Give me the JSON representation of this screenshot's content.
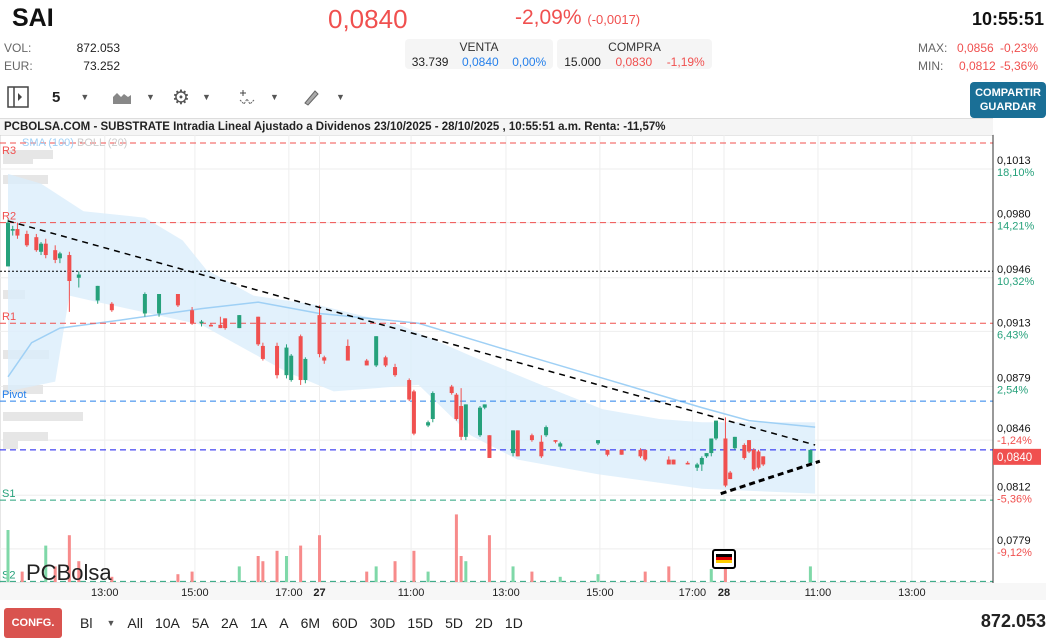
{
  "header": {
    "ticker": "SAI",
    "price": "0,0840",
    "change_pct": "-2,09%",
    "change_abs": "(-0,0017)",
    "time": "10:55:51",
    "vol_label": "VOL:",
    "vol": "872.053",
    "eur_label": "EUR:",
    "eur": "73.252",
    "venta": {
      "label": "VENTA",
      "qty": "33.739",
      "price": "0,0840",
      "pct": "0,00%"
    },
    "compra": {
      "label": "COMPRA",
      "qty": "15.000",
      "price": "0,0830",
      "pct": "-1,19%"
    },
    "max_label": "MAX:",
    "max": "0,0856",
    "max_pct": "-0,23%",
    "min_label": "MIN:",
    "min": "0,0812",
    "min_pct": "-5,36%"
  },
  "toolbar": {
    "interval": "5",
    "share_line1": "COMPARTIR",
    "share_line2": "GUARDAR",
    "icons": [
      "panel-toggle-icon",
      "area-chart-icon",
      "gear-icon",
      "indicators-icon",
      "draw-pencil-icon"
    ]
  },
  "chart_title": "PCBOLSA.COM - SUBSTRATE Intradia Lineal Ajustado a Dividenos 23/10/2025 - 28/10/2025 , 10:55:51 a.m. Renta: -11,57%",
  "legend": {
    "sma": "SMA (100)",
    "boll": "BOLL (20)"
  },
  "colors": {
    "up": "#26a17b",
    "down": "#f0504f",
    "accent": "#1a6f96",
    "band": "#dbeefb",
    "sma": "#9fd0f5"
  },
  "chart_data": {
    "type": "candlestick",
    "ylim": [
      0.0745,
      0.104
    ],
    "y_ticks": [
      {
        "price": "0,1013",
        "pct": "18,10%",
        "v": 0.1013,
        "up": true
      },
      {
        "price": "0,0980",
        "pct": "14,21%",
        "v": 0.098,
        "up": true
      },
      {
        "price": "0,0946",
        "pct": "10,32%",
        "v": 0.0946,
        "up": true
      },
      {
        "price": "0,0913",
        "pct": "6,43%",
        "v": 0.0913,
        "up": true
      },
      {
        "price": "0,0879",
        "pct": "2,54%",
        "v": 0.0879,
        "up": true
      },
      {
        "price": "0,0846",
        "pct": "-1,24%",
        "v": 0.0846,
        "up": false
      },
      {
        "price": "0,0812",
        "pct": "-5,36%",
        "v": 0.0812,
        "up": false
      },
      {
        "price": "0,0779",
        "pct": "-9,12%",
        "v": 0.0779,
        "up": false
      }
    ],
    "current_price_label": "0,0840",
    "current_price": 0.084,
    "x_ticks": [
      {
        "label": "13:00",
        "bar": 20.5
      },
      {
        "label": "15:00",
        "bar": 39.6
      },
      {
        "label": "17:00",
        "bar": 59.5
      },
      {
        "label": "27",
        "bar": 66,
        "bold": true
      },
      {
        "label": "11:00",
        "bar": 85.4
      },
      {
        "label": "13:00",
        "bar": 105.5
      },
      {
        "label": "15:00",
        "bar": 125.4
      },
      {
        "label": "17:00",
        "bar": 145
      },
      {
        "label": "28",
        "bar": 151.7,
        "bold": true
      },
      {
        "label": "11:00",
        "bar": 171.6
      },
      {
        "label": "13:00",
        "bar": 191.5
      }
    ],
    "levels": [
      {
        "name": "R3",
        "v": 0.1029,
        "color": "#f0504f"
      },
      {
        "name": "R2",
        "v": 0.098,
        "color": "#f0504f"
      },
      {
        "name": "",
        "v": 0.095,
        "color": "#000",
        "dotted": true
      },
      {
        "name": "R1",
        "v": 0.0918,
        "color": "#f0504f"
      },
      {
        "name": "Pivot",
        "v": 0.087,
        "color": "#2680eb"
      },
      {
        "name": "",
        "v": 0.084,
        "color": "#1a1aee"
      },
      {
        "name": "S1",
        "v": 0.0809,
        "color": "#26a17b"
      },
      {
        "name": "S2",
        "v": 0.0759,
        "color": "#26a17b"
      }
    ],
    "trendlines": [
      {
        "from": [
          0,
          0.0981
        ],
        "to": [
          171,
          0.0843
        ],
        "style": "resistance"
      },
      {
        "from": [
          151,
          0.0813
        ],
        "to": [
          172,
          0.0833
        ],
        "style": "support"
      }
    ],
    "boll_upper": [
      [
        0,
        0.101
      ],
      [
        7,
        0.1004
      ],
      [
        16,
        0.0987
      ],
      [
        29,
        0.0983
      ],
      [
        37,
        0.0969
      ],
      [
        42,
        0.0951
      ],
      [
        52,
        0.0935
      ],
      [
        66,
        0.0929
      ],
      [
        83,
        0.0917
      ],
      [
        98,
        0.0898
      ],
      [
        113,
        0.088
      ],
      [
        126,
        0.0865
      ],
      [
        138,
        0.0859
      ],
      [
        147,
        0.0857
      ],
      [
        171,
        0.0857
      ]
    ],
    "boll_lower": [
      [
        0,
        0.0876
      ],
      [
        10,
        0.0882
      ],
      [
        13,
        0.0935
      ],
      [
        19,
        0.0931
      ],
      [
        41,
        0.0917
      ],
      [
        59,
        0.0888
      ],
      [
        69,
        0.0876
      ],
      [
        87,
        0.088
      ],
      [
        98,
        0.0849
      ],
      [
        108,
        0.0834
      ],
      [
        125,
        0.0825
      ],
      [
        147,
        0.0816
      ],
      [
        171,
        0.0813
      ]
    ],
    "sma100": [
      [
        0,
        0.0885
      ],
      [
        5,
        0.0906
      ],
      [
        11,
        0.0915
      ],
      [
        24,
        0.092
      ],
      [
        41,
        0.0927
      ],
      [
        53,
        0.0931
      ],
      [
        66,
        0.0924
      ],
      [
        87,
        0.0918
      ],
      [
        104,
        0.0903
      ],
      [
        125,
        0.0885
      ],
      [
        147,
        0.0866
      ],
      [
        157,
        0.0858
      ],
      [
        171,
        0.0854
      ]
    ],
    "candles": [
      [
        0,
        0.0953,
        0.0982,
        0.0953,
        0.098
      ],
      [
        1,
        0.0975,
        0.0978,
        0.0972,
        0.0976
      ],
      [
        2,
        0.0976,
        0.098,
        0.097,
        0.0972
      ],
      [
        4,
        0.0973,
        0.0975,
        0.0965,
        0.0966
      ],
      [
        6,
        0.0971,
        0.0973,
        0.0962,
        0.0963
      ],
      [
        7,
        0.0962,
        0.0968,
        0.096,
        0.0967
      ],
      [
        8,
        0.0967,
        0.097,
        0.0958,
        0.096
      ],
      [
        10,
        0.0963,
        0.0966,
        0.0955,
        0.0957
      ],
      [
        11,
        0.0958,
        0.0962,
        0.0955,
        0.0961
      ],
      [
        13,
        0.096,
        0.0962,
        0.0925,
        0.0944
      ],
      [
        15,
        0.0946,
        0.095,
        0.094,
        0.0948
      ],
      [
        19,
        0.0932,
        0.0941,
        0.093,
        0.0941
      ],
      [
        22,
        0.093,
        0.0931,
        0.0925,
        0.0926
      ],
      [
        29,
        0.0924,
        0.0937,
        0.0922,
        0.0936
      ],
      [
        32,
        0.0924,
        0.0936,
        0.0922,
        0.0936
      ],
      [
        36,
        0.0936,
        0.0936,
        0.0928,
        0.0929
      ],
      [
        39,
        0.0926,
        0.0928,
        0.0917,
        0.0918
      ],
      [
        41,
        0.0918,
        0.092,
        0.0916,
        0.0919
      ],
      [
        43,
        0.0917,
        0.0918,
        0.0916,
        0.0916
      ],
      [
        45,
        0.0917,
        0.0922,
        0.0915,
        0.0915
      ],
      [
        46,
        0.0921,
        0.0921,
        0.0914,
        0.0915
      ],
      [
        49,
        0.0915,
        0.0923,
        0.0915,
        0.0923
      ],
      [
        53,
        0.0922,
        0.0922,
        0.0904,
        0.0905
      ],
      [
        54,
        0.0904,
        0.0906,
        0.0895,
        0.0896
      ],
      [
        57,
        0.0904,
        0.0906,
        0.0884,
        0.0886
      ],
      [
        59,
        0.0886,
        0.0905,
        0.0884,
        0.0903
      ],
      [
        60,
        0.0883,
        0.0899,
        0.0882,
        0.0898
      ],
      [
        62,
        0.091,
        0.0911,
        0.088,
        0.0883
      ],
      [
        63,
        0.0883,
        0.0897,
        0.0881,
        0.0896
      ],
      [
        66,
        0.0923,
        0.0929,
        0.0897,
        0.0899
      ],
      [
        67,
        0.0897,
        0.0898,
        0.0893,
        0.0895
      ],
      [
        72,
        0.0904,
        0.0908,
        0.0895,
        0.0895
      ],
      [
        76,
        0.0895,
        0.0896,
        0.0892,
        0.0892
      ],
      [
        78,
        0.0892,
        0.091,
        0.0891,
        0.091
      ],
      [
        80,
        0.0897,
        0.0898,
        0.0891,
        0.0892
      ],
      [
        82,
        0.0891,
        0.0893,
        0.0885,
        0.0886
      ],
      [
        85,
        0.0883,
        0.0884,
        0.087,
        0.0871
      ],
      [
        86,
        0.0876,
        0.0877,
        0.0849,
        0.085
      ],
      [
        89,
        0.0855,
        0.0858,
        0.0854,
        0.0857
      ],
      [
        90,
        0.0859,
        0.0876,
        0.0857,
        0.0875
      ],
      [
        94,
        0.0879,
        0.088,
        0.0874,
        0.0875
      ],
      [
        95,
        0.0874,
        0.0875,
        0.0858,
        0.0859
      ],
      [
        96,
        0.0867,
        0.0878,
        0.0846,
        0.0848
      ],
      [
        97,
        0.0848,
        0.0868,
        0.0846,
        0.0868
      ],
      [
        100,
        0.0849,
        0.0867,
        0.0848,
        0.0866
      ],
      [
        101,
        0.0866,
        0.0868,
        0.0865,
        0.0868
      ],
      [
        102,
        0.0849,
        0.0849,
        0.0835,
        0.0835
      ],
      [
        107,
        0.0838,
        0.0852,
        0.0836,
        0.0852
      ],
      [
        108,
        0.0852,
        0.0852,
        0.0836,
        0.0836
      ],
      [
        111,
        0.0849,
        0.085,
        0.0845,
        0.0846
      ],
      [
        113,
        0.0845,
        0.0849,
        0.0835,
        0.0836
      ],
      [
        114,
        0.0849,
        0.0855,
        0.0848,
        0.0854
      ],
      [
        116,
        0.0846,
        0.0846,
        0.0844,
        0.0845
      ],
      [
        117,
        0.0842,
        0.0845,
        0.084,
        0.0844
      ],
      [
        125,
        0.0844,
        0.0846,
        0.0843,
        0.0846
      ],
      [
        127,
        0.084,
        0.084,
        0.0836,
        0.0837
      ],
      [
        130,
        0.084,
        0.084,
        0.0837,
        0.0837
      ],
      [
        134,
        0.084,
        0.0841,
        0.0835,
        0.0836
      ],
      [
        135,
        0.084,
        0.084,
        0.0833,
        0.0834
      ],
      [
        140,
        0.0834,
        0.0836,
        0.0831,
        0.0831
      ],
      [
        141,
        0.0834,
        0.0834,
        0.0831,
        0.0831
      ],
      [
        144,
        0.0832,
        0.0833,
        0.0831,
        0.0831
      ],
      [
        146,
        0.0829,
        0.0832,
        0.0827,
        0.0831
      ],
      [
        147,
        0.0831,
        0.0836,
        0.0827,
        0.0835
      ],
      [
        148,
        0.0836,
        0.0838,
        0.0835,
        0.0838
      ],
      [
        149,
        0.0838,
        0.0847,
        0.0836,
        0.0847
      ],
      [
        150,
        0.0847,
        0.0858,
        0.0846,
        0.0858
      ],
      [
        152,
        0.0847,
        0.086,
        0.0817,
        0.0818
      ],
      [
        153,
        0.0826,
        0.0827,
        0.0822,
        0.0822
      ],
      [
        154,
        0.0841,
        0.0848,
        0.084,
        0.0848
      ],
      [
        156,
        0.0843,
        0.0844,
        0.0834,
        0.0835
      ],
      [
        157,
        0.0846,
        0.0846,
        0.0838,
        0.0839
      ],
      [
        158,
        0.084,
        0.0841,
        0.0827,
        0.0828
      ],
      [
        159,
        0.0839,
        0.084,
        0.0828,
        0.0829
      ],
      [
        160,
        0.0836,
        0.0836,
        0.083,
        0.0831
      ],
      [
        170,
        0.0832,
        0.084,
        0.0832,
        0.084
      ]
    ],
    "volume": [
      [
        0,
        1.0,
        true
      ],
      [
        3,
        0.2,
        false
      ],
      [
        8,
        0.7,
        true
      ],
      [
        10,
        0.3,
        false
      ],
      [
        13,
        0.9,
        false
      ],
      [
        15,
        0.4,
        false
      ],
      [
        22,
        0.1,
        false
      ],
      [
        36,
        0.15,
        false
      ],
      [
        39,
        0.2,
        false
      ],
      [
        49,
        0.3,
        true
      ],
      [
        53,
        0.5,
        false
      ],
      [
        54,
        0.4,
        false
      ],
      [
        57,
        0.6,
        false
      ],
      [
        59,
        0.5,
        true
      ],
      [
        62,
        0.7,
        false
      ],
      [
        66,
        0.9,
        false
      ],
      [
        76,
        0.2,
        false
      ],
      [
        78,
        0.3,
        true
      ],
      [
        82,
        0.4,
        false
      ],
      [
        86,
        0.6,
        false
      ],
      [
        89,
        0.2,
        true
      ],
      [
        95,
        1.3,
        false
      ],
      [
        96,
        0.5,
        false
      ],
      [
        97,
        0.4,
        true
      ],
      [
        102,
        0.9,
        false
      ],
      [
        107,
        0.3,
        true
      ],
      [
        111,
        0.2,
        false
      ],
      [
        117,
        0.1,
        true
      ],
      [
        125,
        0.15,
        true
      ],
      [
        135,
        0.2,
        false
      ],
      [
        140,
        0.3,
        false
      ],
      [
        149,
        0.25,
        true
      ],
      [
        152,
        0.5,
        false
      ],
      [
        170,
        0.3,
        true
      ]
    ]
  },
  "footer": {
    "config": "CONFG.",
    "mode": "Bl",
    "ranges": [
      "All",
      "10A",
      "5A",
      "2A",
      "1A",
      "A",
      "6M",
      "60D",
      "30D",
      "15D",
      "5D",
      "2D",
      "1D"
    ],
    "volume": "872.053"
  },
  "watermark": "PCBolsa"
}
